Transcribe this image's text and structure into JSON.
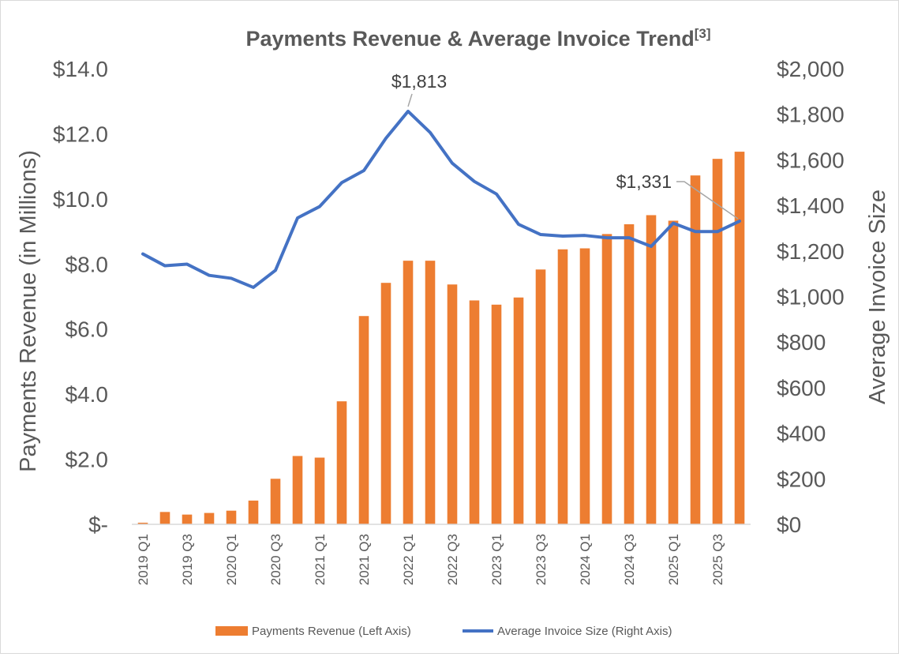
{
  "chart_data": {
    "type": "bar+line",
    "title": "Payments Revenue & Average Invoice Trend",
    "title_superscript": "[3]",
    "categories": [
      "2019 Q1",
      "2019 Q2",
      "2019 Q3",
      "2019 Q4",
      "2020 Q1",
      "2020 Q2",
      "2020 Q3",
      "2020 Q4",
      "2021 Q1",
      "2021 Q2",
      "2021 Q3",
      "2021 Q4",
      "2022 Q1",
      "2022 Q2",
      "2022 Q3",
      "2022 Q4",
      "2023 Q1",
      "2023 Q2",
      "2023 Q3",
      "2023 Q4",
      "2024 Q1",
      "2024 Q2",
      "2024 Q3",
      "2024 Q4",
      "2025 Q1",
      "2025 Q2",
      "2025 Q3",
      "2025 Q4"
    ],
    "x_tick_labels": [
      "2019 Q1",
      "2019 Q3",
      "2020 Q1",
      "2020 Q3",
      "2021 Q1",
      "2021 Q3",
      "2022 Q1",
      "2022 Q3",
      "2023 Q1",
      "2023 Q3",
      "2024 Q1",
      "2024 Q3",
      "2025 Q1",
      "2025 Q3"
    ],
    "series": [
      {
        "name": "Payments Revenue (Left Axis)",
        "type": "bar",
        "axis": "left",
        "color": "#ED7D31",
        "values": [
          0.05,
          0.38,
          0.3,
          0.35,
          0.42,
          0.73,
          1.4,
          2.1,
          2.05,
          3.78,
          6.4,
          7.42,
          8.1,
          8.1,
          7.37,
          6.88,
          6.75,
          6.97,
          7.83,
          8.45,
          8.48,
          8.92,
          9.22,
          9.5,
          9.33,
          10.72,
          11.23,
          11.45
        ]
      },
      {
        "name": "Average Invoice Size (Right Axis)",
        "type": "line",
        "axis": "right",
        "color": "#4472C4",
        "values": [
          1187,
          1135,
          1142,
          1093,
          1080,
          1040,
          1115,
          1345,
          1395,
          1500,
          1553,
          1695,
          1813,
          1720,
          1585,
          1505,
          1450,
          1317,
          1272,
          1265,
          1268,
          1258,
          1258,
          1220,
          1322,
          1285,
          1285,
          1331
        ]
      }
    ],
    "y_left": {
      "label": "Payments Revenue (in Millions)",
      "min": 0,
      "max": 14,
      "step": 2,
      "tick_labels": [
        "$-",
        "$2.0",
        "$4.0",
        "$6.0",
        "$8.0",
        "$10.0",
        "$12.0",
        "$14.0"
      ]
    },
    "y_right": {
      "label": "Average Invoice Size",
      "min": 0,
      "max": 2000,
      "step": 200,
      "tick_labels": [
        "$0",
        "$200",
        "$400",
        "$600",
        "$800",
        "$1,000",
        "$1,200",
        "$1,400",
        "$1,600",
        "$1,800",
        "$2,000"
      ]
    },
    "grid": false,
    "legend_position": "bottom",
    "annotations": [
      {
        "text": "$1,813",
        "category": "2022 Q1",
        "value": 1813,
        "series": "line"
      },
      {
        "text": "$1,331",
        "category": "2025 Q4",
        "value": 1331,
        "series": "line"
      }
    ]
  }
}
